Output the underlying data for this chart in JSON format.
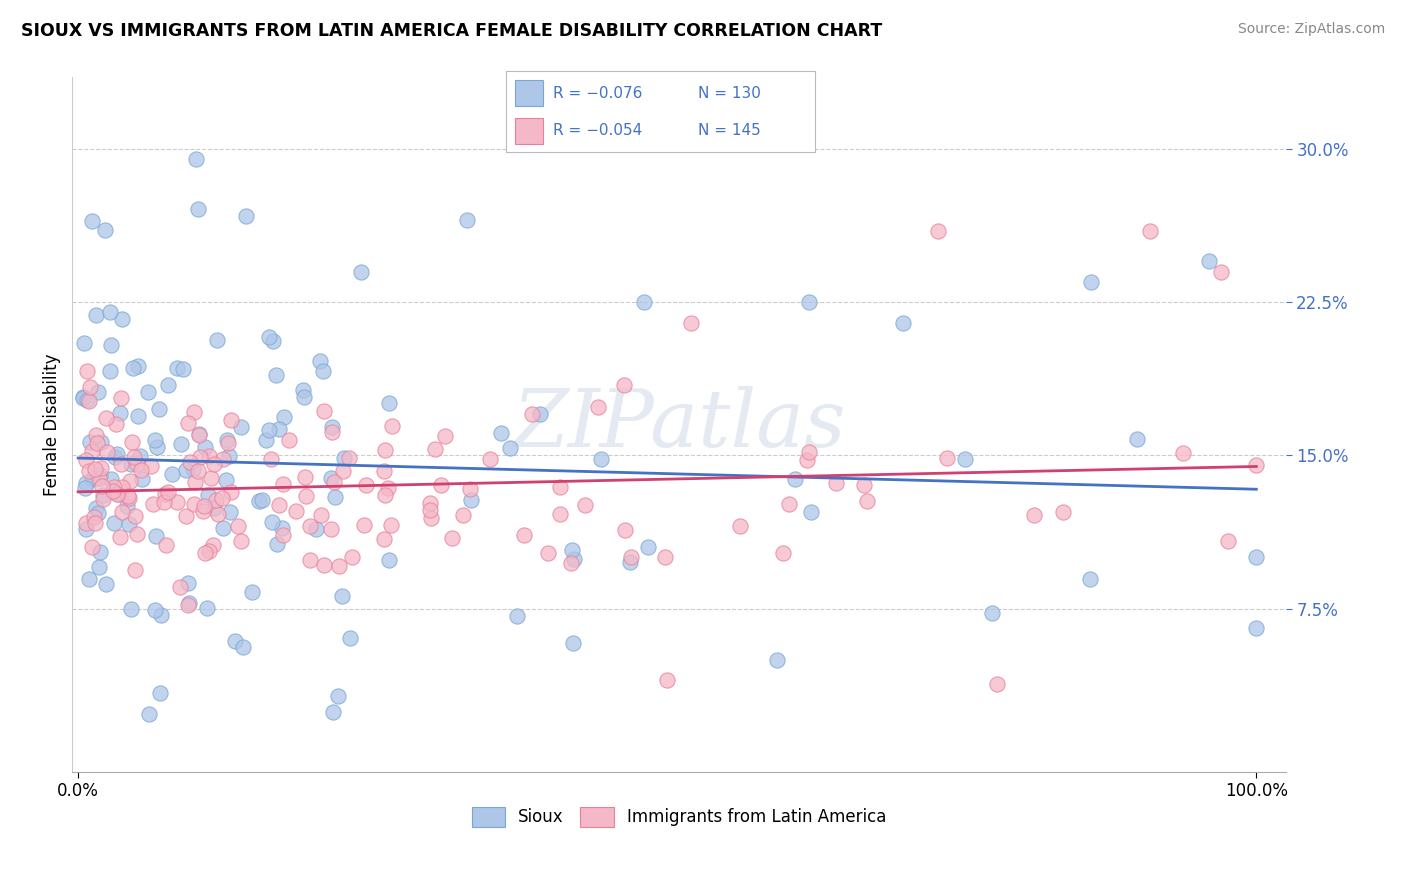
{
  "title": "SIOUX VS IMMIGRANTS FROM LATIN AMERICA FEMALE DISABILITY CORRELATION CHART",
  "source": "Source: ZipAtlas.com",
  "ylabel": "Female Disability",
  "xlabel": "",
  "ytick_labels": [
    "7.5%",
    "15.0%",
    "22.5%",
    "30.0%"
  ],
  "ytick_vals": [
    0.075,
    0.15,
    0.225,
    0.3
  ],
  "xtick_labels": [
    "0.0%",
    "100.0%"
  ],
  "xtick_vals": [
    0.0,
    1.0
  ],
  "legend_r1": "R = −0.076",
  "legend_n1": "N = 130",
  "legend_r2": "R = −0.054",
  "legend_n2": "N = 145",
  "sioux_color": "#aec6e8",
  "latin_color": "#f4b8c8",
  "sioux_edge_color": "#7aa8d4",
  "latin_edge_color": "#e8809a",
  "sioux_line_color": "#4472c4",
  "latin_line_color": "#d04070",
  "tick_label_color": "#4472c4",
  "watermark_text": "ZIPatlas",
  "background_color": "#ffffff",
  "legend_text_color": "#4472c4"
}
